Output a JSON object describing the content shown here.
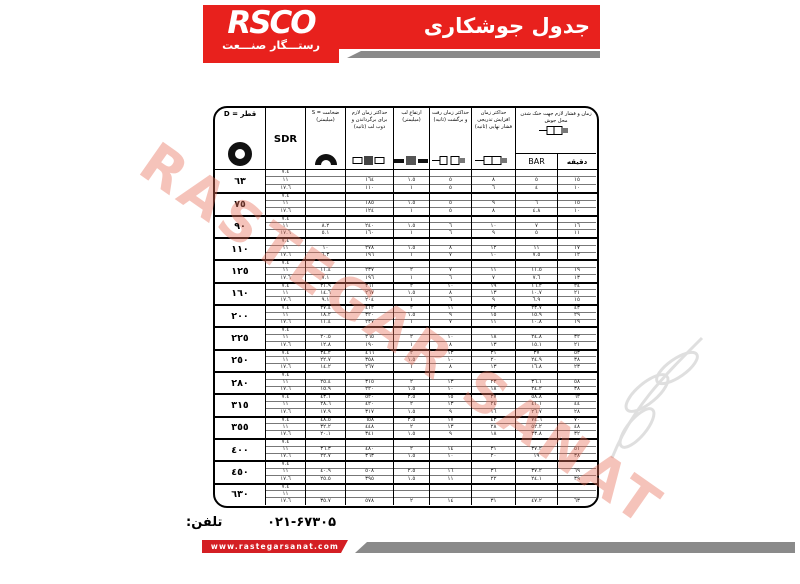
{
  "header": {
    "logo_text": "RSCO",
    "logo_subtext": "رستـــگار صنـــعت",
    "title": "جدول جوشکاری"
  },
  "watermark": {
    "text": "RASTEGAR SANAT",
    "color": "#e8705a"
  },
  "colors": {
    "brand_red": "#e8211d",
    "stripe_gray": "#8a8a8a"
  },
  "table": {
    "header": {
      "diameter": "قطر = D",
      "sdr": "SDR",
      "thickness": "ضخامت = S (میلیمتر)",
      "melt": "حداکثر زمان لازم برای برگرداندن و ذوب لب (ثانیه)",
      "lip": "ارتفاع لب (میلیمتر)",
      "travel": "حداکثر زمان رفت و برگشت (ثانیه)",
      "ramp": "حداکثر زمان افزایش تدریجی فشار نهایی (ثانیه)",
      "cooling": "زمان و فشار لازم جهت خنک شدن محل جوش",
      "bar": "BAR",
      "minutes": "دقیقه"
    },
    "sdr_values": [
      "٧.٤",
      "١١",
      "١٧.٦"
    ],
    "rows": [
      {
        "diameter": "٦٣",
        "sub": [
          {
            "s": "",
            "melt": "",
            "lip": "",
            "travel": "",
            "ramp": "",
            "bar": "",
            "min": ""
          },
          {
            "s": "",
            "melt": "١٦٤",
            "lip": "١.٥",
            "travel": "٥",
            "ramp": "٨",
            "bar": "٥",
            "min": "١٥"
          },
          {
            "s": "",
            "melt": "١١٠",
            "lip": "١",
            "travel": "٥",
            "ramp": "٦",
            "bar": "٤",
            "min": "١٠"
          }
        ]
      },
      {
        "diameter": "٧٥",
        "sub": [
          {
            "s": "",
            "melt": "",
            "lip": "",
            "travel": "",
            "ramp": "",
            "bar": "",
            "min": ""
          },
          {
            "s": "",
            "melt": "١٨٥",
            "lip": "١.٥",
            "travel": "٥",
            "ramp": "٩",
            "bar": "٦",
            "min": "١٥"
          },
          {
            "s": "",
            "melt": "١٢٤",
            "lip": "١",
            "travel": "٥",
            "ramp": "٨",
            "bar": "٤.٨",
            "min": "١٠"
          }
        ]
      },
      {
        "diameter": "٩٠",
        "sub": [
          {
            "s": "",
            "melt": "",
            "lip": "",
            "travel": "",
            "ramp": "",
            "bar": "",
            "min": ""
          },
          {
            "s": "٨.٢",
            "melt": "٢٤٠",
            "lip": "١.٥",
            "travel": "٦",
            "ramp": "١٠",
            "bar": "٧",
            "min": "١٦"
          },
          {
            "s": "٥.١",
            "melt": "١٦٠",
            "lip": "١",
            "travel": "٦",
            "ramp": "٩",
            "bar": "٥",
            "min": "١١"
          }
        ]
      },
      {
        "diameter": "١١٠",
        "sub": [
          {
            "s": "",
            "melt": "",
            "lip": "",
            "travel": "",
            "ramp": "",
            "bar": "",
            "min": ""
          },
          {
            "s": "١٠",
            "melt": "٢٧٨",
            "lip": "١.٥",
            "travel": "٨",
            "ramp": "١٢",
            "bar": "١١",
            "min": "١٧"
          },
          {
            "s": "٦.٣",
            "melt": "١٩٦",
            "lip": "١",
            "travel": "٧",
            "ramp": "١٠",
            "bar": "٧.٥",
            "min": "١٢"
          }
        ]
      },
      {
        "diameter": "١٢٥",
        "sub": [
          {
            "s": "",
            "melt": "",
            "lip": "",
            "travel": "",
            "ramp": "",
            "bar": "",
            "min": ""
          },
          {
            "s": "١١.٤",
            "melt": "٢٣٧",
            "lip": "٢",
            "travel": "٧",
            "ramp": "١١",
            "bar": "١١.٥",
            "min": "١٩"
          },
          {
            "s": "٧.١",
            "melt": "١٩٦",
            "lip": "١",
            "travel": "٦",
            "ramp": "٧",
            "bar": "٧.٦",
            "min": "١٣"
          }
        ]
      },
      {
        "diameter": "١٦٠",
        "sub": [
          {
            "s": "٢١.٩",
            "melt": "٣٦١",
            "lip": "٢",
            "travel": "١٠",
            "ramp": "١٩",
            "bar": "١٦.٢",
            "min": "٢٤"
          },
          {
            "s": "١٤.٦",
            "melt": "٢٦٧",
            "lip": "١.٥",
            "travel": "٨",
            "ramp": "١٣",
            "bar": "١٠.٧",
            "min": "٢١"
          },
          {
            "s": "٩.١",
            "melt": "٢٠٤",
            "lip": "١",
            "travel": "٦",
            "ramp": "٩",
            "bar": "٦.٩",
            "min": "١٥"
          }
        ]
      },
      {
        "diameter": "٢٠٠",
        "sub": [
          {
            "s": "٢٧.٤",
            "melt": "٤١٢",
            "lip": "٢",
            "travel": "١١",
            "ramp": "٢٣",
            "bar": "٢٣.٧",
            "min": "٤٣"
          },
          {
            "s": "١٨.٢",
            "melt": "٣٢٠",
            "lip": "١.٥",
            "travel": "٩",
            "ramp": "١٥",
            "bar": "١٥.٩",
            "min": "٢٩"
          },
          {
            "s": "١١.٤",
            "melt": "٢٣٧",
            "lip": "١",
            "travel": "٧",
            "ramp": "١١",
            "bar": "١٠.٨",
            "min": "١٩"
          }
        ]
      },
      {
        "diameter": "٢٢٥",
        "sub": [
          {
            "s": "",
            "melt": "",
            "lip": "",
            "travel": "",
            "ramp": "",
            "bar": "",
            "min": ""
          },
          {
            "s": "٢٠.٥",
            "melt": "٢٦٥",
            "lip": "٢",
            "travel": "١٠",
            "ramp": "١٨",
            "bar": "٢٤.٨",
            "min": "٣٢"
          },
          {
            "s": "١٢.٨",
            "melt": "١٩٠",
            "lip": "١",
            "travel": "٨",
            "ramp": "١٣",
            "bar": "١٥.١",
            "min": "٢١"
          }
        ]
      },
      {
        "diameter": "٢٥٠",
        "sub": [
          {
            "s": "٣٤.٢",
            "melt": "٤٦٦",
            "lip": "٢",
            "travel": "١٣",
            "ramp": "٣١",
            "bar": "٣٧",
            "min": "٥٣"
          },
          {
            "s": "٢٢.٧",
            "melt": "٣٥٨",
            "lip": "١.٥",
            "travel": "١٠",
            "ramp": "٢٠",
            "bar": "٢٤.٩",
            "min": "٣٨"
          },
          {
            "s": "١٤.٢",
            "melt": "٢٦٧",
            "lip": "١",
            "travel": "٨",
            "ramp": "١٣",
            "bar": "١٦.٨",
            "min": "٢٣"
          }
        ]
      },
      {
        "diameter": "٢٨٠",
        "sub": [
          {
            "s": "",
            "melt": "",
            "lip": "",
            "travel": "",
            "ramp": "",
            "bar": "",
            "min": ""
          },
          {
            "s": "٢٥.٤",
            "melt": "٣١٥",
            "lip": "٢",
            "travel": "١٣",
            "ramp": "٢٣",
            "bar": "٣٦.١",
            "min": "٥٨"
          },
          {
            "s": "١٥.٩",
            "melt": "٢٢٠",
            "lip": "١.٥",
            "travel": "١٠",
            "ramp": "١٨",
            "bar": "٢٤.٢",
            "min": "٣٨"
          }
        ]
      },
      {
        "diameter": "٣١٥",
        "sub": [
          {
            "s": "٤٣.١",
            "melt": "٥٢٠",
            "lip": "٢.٥",
            "travel": "١٥",
            "ramp": "٣٧",
            "bar": "٥٨.٨",
            "min": "٦٢"
          },
          {
            "s": "٢٨.٦",
            "melt": "٤٢٠",
            "lip": "٢",
            "travel": "١٣",
            "ramp": "٢٤",
            "bar": "٤١.١",
            "min": "٤٤"
          },
          {
            "s": "١٧.٩",
            "melt": "٣١٧",
            "lip": "١.٥",
            "travel": "٩",
            "ramp": "١٦",
            "bar": "٢٦.٧",
            "min": "٢٨"
          }
        ]
      },
      {
        "diameter": "٣٥٥",
        "sub": [
          {
            "s": "٤٨.٥",
            "melt": "٦٥٨",
            "lip": "٢.٥",
            "travel": "١٧",
            "ramp": "٤٣",
            "bar": "٧٤.٦",
            "min": "٧٠"
          },
          {
            "s": "٣٢.٢",
            "melt": "٤٤٨",
            "lip": "٢",
            "travel": "١٣",
            "ramp": "٢٨",
            "bar": "٥٢.٢",
            "min": "٤٨"
          },
          {
            "s": "٢٠.١",
            "melt": "٣٤١",
            "lip": "١.٥",
            "travel": "٩",
            "ramp": "١٨",
            "bar": "٣٣.٨",
            "min": "٣٢"
          }
        ]
      },
      {
        "diameter": "٤٠٠",
        "sub": [
          {
            "s": "",
            "melt": "",
            "lip": "",
            "travel": "",
            "ramp": "",
            "bar": "",
            "min": ""
          },
          {
            "s": "٣٦.٣",
            "melt": "٤٨٠",
            "lip": "٢",
            "travel": "١٤",
            "ramp": "٣١",
            "bar": "٣٧.٢",
            "min": "٥١"
          },
          {
            "s": "٢٢.٧",
            "melt": "٣٦٣",
            "lip": "١.٥",
            "travel": "١٠",
            "ramp": "٢٠",
            "bar": "١٩",
            "min": "٣٨"
          }
        ]
      },
      {
        "diameter": "٤٥٠",
        "sub": [
          {
            "s": "",
            "melt": "",
            "lip": "",
            "travel": "",
            "ramp": "",
            "bar": "",
            "min": ""
          },
          {
            "s": "٤٠.٩",
            "melt": "٥٠٨",
            "lip": "٢.٥",
            "travel": "١٦",
            "ramp": "٣٦",
            "bar": "٣٧.٢",
            "min": "٦٩"
          },
          {
            "s": "٢٥.٥",
            "melt": "٣٩٥",
            "lip": "١.٥",
            "travel": "١١",
            "ramp": "٢٢",
            "bar": "٢٤.١",
            "min": "٣٩"
          }
        ]
      },
      {
        "diameter": "٦٣٠",
        "sub": [
          {
            "s": "",
            "melt": "",
            "lip": "",
            "travel": "",
            "ramp": "",
            "bar": "",
            "min": ""
          },
          {
            "s": "",
            "melt": "",
            "lip": "",
            "travel": "",
            "ramp": "",
            "bar": "",
            "min": ""
          },
          {
            "s": "٣٥.٧",
            "melt": "٥٧٨",
            "lip": "٢",
            "travel": "١٤",
            "ramp": "٣١",
            "bar": "٤٧.٢",
            "min": "٦٣"
          }
        ]
      }
    ]
  },
  "footer": {
    "phone_label": "تلفن:",
    "phone": "۰۲۱-۶۷۳۰۵",
    "website": "www.rastegarsanat.com"
  }
}
